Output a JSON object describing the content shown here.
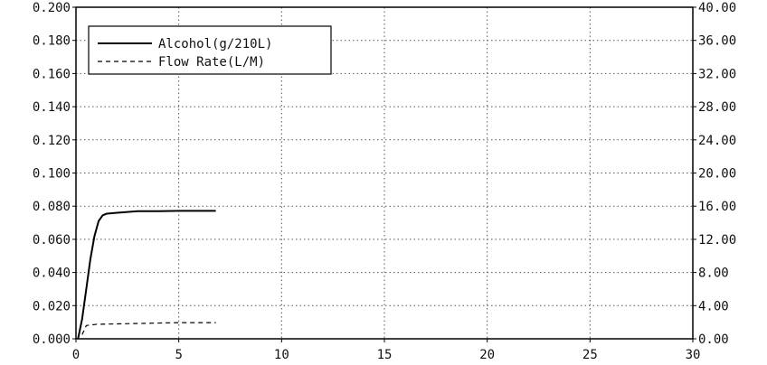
{
  "chart_data": {
    "type": "line",
    "title": "",
    "xlabel": "",
    "ylabel": "",
    "xlim": [
      0,
      30
    ],
    "ylim": [
      0,
      0.2
    ],
    "y2lim": [
      0,
      40
    ],
    "x_ticks": [
      "0",
      "5",
      "10",
      "15",
      "20",
      "25",
      "30"
    ],
    "y_ticks": [
      "0.000",
      "0.020",
      "0.040",
      "0.060",
      "0.080",
      "0.100",
      "0.120",
      "0.140",
      "0.160",
      "0.180",
      "0.200"
    ],
    "y2_ticks": [
      "0.00",
      "4.00",
      "8.00",
      "12.00",
      "16.00",
      "20.00",
      "24.00",
      "28.00",
      "32.00",
      "36.00",
      "40.00"
    ],
    "grid": true,
    "legend_position": "top-left",
    "series": [
      {
        "name": "Alcohol(g/210L)",
        "axis": "left",
        "style": "solid",
        "color": "#000000",
        "x": [
          0.1,
          0.3,
          0.5,
          0.7,
          0.9,
          1.1,
          1.3,
          1.5,
          2.0,
          2.5,
          3.0,
          4.0,
          5.0,
          6.0,
          6.8
        ],
        "y": [
          0.0,
          0.012,
          0.03,
          0.048,
          0.062,
          0.071,
          0.0745,
          0.0755,
          0.076,
          0.0765,
          0.077,
          0.077,
          0.0772,
          0.0772,
          0.0772
        ]
      },
      {
        "name": "Flow Rate(L/M)",
        "axis": "right",
        "style": "dashed",
        "color": "#000000",
        "x": [
          0.3,
          0.5,
          1.0,
          2.0,
          3.0,
          4.0,
          5.0,
          6.0,
          6.8
        ],
        "y": [
          0.5,
          1.6,
          1.75,
          1.8,
          1.85,
          1.9,
          1.95,
          1.95,
          1.95
        ]
      }
    ]
  }
}
